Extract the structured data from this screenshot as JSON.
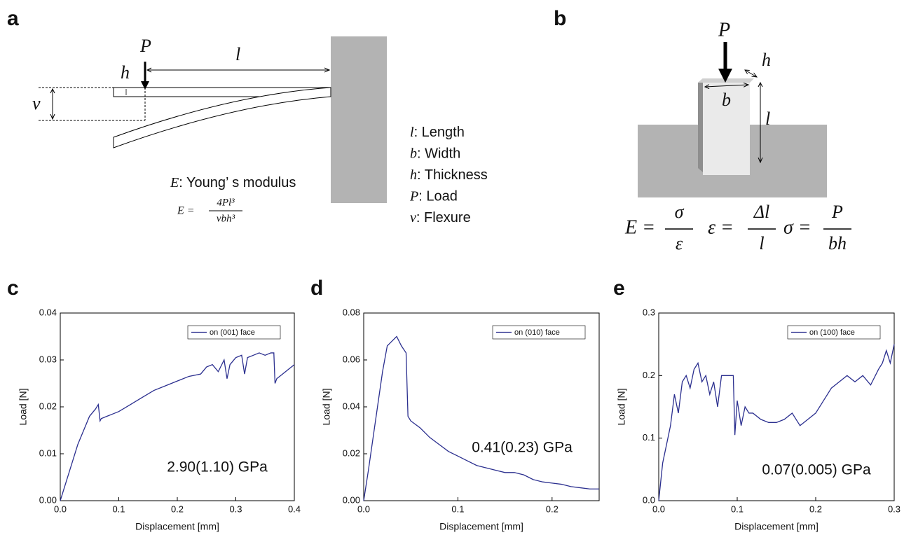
{
  "diagram_a": {
    "label": "a",
    "P": "P",
    "l": "l",
    "h": "h",
    "v": "v",
    "caption_symbol": "E",
    "caption_text": ": Young’ s modulus",
    "formula": {
      "lhs": "E =",
      "numerator": "4Pl³",
      "denominator": "vbh³"
    },
    "legend": [
      {
        "symbol": "l",
        "text": ": Length"
      },
      {
        "symbol": "b",
        "text": ": Width"
      },
      {
        "symbol": "h",
        "text": ": Thickness"
      },
      {
        "symbol": "P",
        "text": ": Load"
      },
      {
        "symbol": "v",
        "text": ": Flexure"
      }
    ]
  },
  "diagram_b": {
    "label": "b",
    "P": "P",
    "h": "h",
    "b": "b",
    "l": "l",
    "formulas": [
      {
        "lhs": "E =",
        "numerator": "σ",
        "denominator": "ε"
      },
      {
        "lhs": "ε =",
        "numerator": "Δl",
        "denominator": "l"
      },
      {
        "lhs": "σ =",
        "numerator": "P",
        "denominator": "bh"
      }
    ]
  },
  "chart_data": [
    {
      "type": "line",
      "panel": "c",
      "xlabel": "Displacement [mm]",
      "ylabel": "Load [N]",
      "annotation": "2.90(1.10) GPa",
      "legend": "upper right",
      "x": [
        0,
        0.01,
        0.02,
        0.03,
        0.04,
        0.05,
        0.06,
        0.065,
        0.068,
        0.07,
        0.08,
        0.09,
        0.1,
        0.12,
        0.14,
        0.16,
        0.18,
        0.2,
        0.22,
        0.24,
        0.25,
        0.26,
        0.27,
        0.28,
        0.285,
        0.29,
        0.3,
        0.31,
        0.315,
        0.32,
        0.33,
        0.34,
        0.35,
        0.36,
        0.365,
        0.367,
        0.37,
        0.38,
        0.39,
        0.4
      ],
      "series": [
        {
          "name": "on (001) face",
          "color": "#2b2f8f",
          "values": [
            0,
            0.004,
            0.008,
            0.012,
            0.015,
            0.018,
            0.0195,
            0.0205,
            0.017,
            0.0175,
            0.018,
            0.0185,
            0.019,
            0.0205,
            0.022,
            0.0235,
            0.0245,
            0.0255,
            0.0265,
            0.027,
            0.0285,
            0.029,
            0.0275,
            0.03,
            0.026,
            0.029,
            0.0305,
            0.031,
            0.027,
            0.0305,
            0.031,
            0.0315,
            0.031,
            0.0315,
            0.0315,
            0.025,
            0.026,
            0.027,
            0.028,
            0.029
          ]
        }
      ],
      "xlim": [
        0,
        0.4
      ],
      "ylim": [
        0,
        0.04
      ],
      "xticks": [
        {
          "value": 0,
          "label": "0.0"
        },
        0.1,
        0.2,
        0.3,
        0.4
      ],
      "yticks": [
        {
          "value": 0,
          "label": "0.00"
        },
        0.01,
        0.02,
        0.03,
        0.04
      ]
    },
    {
      "type": "line",
      "panel": "d",
      "xlabel": "Displacement [mm]",
      "ylabel": "Load [N]",
      "annotation": "0.41(0.23) GPa",
      "legend": "upper right",
      "x": [
        0,
        0.005,
        0.01,
        0.015,
        0.02,
        0.025,
        0.03,
        0.035,
        0.04,
        0.045,
        0.047,
        0.05,
        0.06,
        0.07,
        0.08,
        0.09,
        0.1,
        0.11,
        0.12,
        0.13,
        0.14,
        0.15,
        0.16,
        0.17,
        0.18,
        0.19,
        0.2,
        0.21,
        0.22,
        0.23,
        0.24,
        0.25
      ],
      "series": [
        {
          "name": "on (010) face",
          "color": "#2b2f8f",
          "values": [
            0,
            0.013,
            0.027,
            0.041,
            0.055,
            0.066,
            0.068,
            0.07,
            0.066,
            0.063,
            0.036,
            0.034,
            0.031,
            0.027,
            0.024,
            0.021,
            0.019,
            0.017,
            0.015,
            0.014,
            0.013,
            0.012,
            0.012,
            0.011,
            0.009,
            0.008,
            0.0075,
            0.007,
            0.006,
            0.0055,
            0.005,
            0.005
          ]
        }
      ],
      "xlim": [
        0,
        0.25
      ],
      "ylim": [
        0,
        0.08
      ],
      "xticks": [
        {
          "value": 0,
          "label": "0.0"
        },
        0.1,
        0.2
      ],
      "yticks": [
        {
          "value": 0,
          "label": "0.00"
        },
        0.02,
        0.04,
        0.06,
        0.08
      ]
    },
    {
      "type": "line",
      "panel": "e",
      "xlabel": "Displacement [mm]",
      "ylabel": "Load [N]",
      "annotation": "0.07(0.005) GPa",
      "legend": "upper right",
      "x": [
        0,
        0.005,
        0.01,
        0.015,
        0.02,
        0.025,
        0.03,
        0.035,
        0.04,
        0.045,
        0.05,
        0.055,
        0.06,
        0.065,
        0.07,
        0.075,
        0.08,
        0.085,
        0.09,
        0.095,
        0.097,
        0.1,
        0.105,
        0.11,
        0.115,
        0.12,
        0.13,
        0.14,
        0.15,
        0.16,
        0.17,
        0.18,
        0.19,
        0.2,
        0.21,
        0.22,
        0.23,
        0.24,
        0.25,
        0.26,
        0.27,
        0.28,
        0.285,
        0.29,
        0.295,
        0.3
      ],
      "series": [
        {
          "name": "on (100) face",
          "color": "#2b2f8f",
          "values": [
            0,
            0.06,
            0.09,
            0.12,
            0.17,
            0.14,
            0.19,
            0.2,
            0.18,
            0.21,
            0.22,
            0.19,
            0.2,
            0.17,
            0.19,
            0.15,
            0.2,
            0.2,
            0.2,
            0.2,
            0.105,
            0.16,
            0.12,
            0.15,
            0.14,
            0.14,
            0.13,
            0.125,
            0.125,
            0.13,
            0.14,
            0.12,
            0.13,
            0.14,
            0.16,
            0.18,
            0.19,
            0.2,
            0.19,
            0.2,
            0.185,
            0.21,
            0.22,
            0.24,
            0.22,
            0.25
          ]
        }
      ],
      "xlim": [
        0,
        0.3
      ],
      "ylim": [
        0,
        0.3
      ],
      "xticks": [
        {
          "value": 0,
          "label": "0.0"
        },
        0.1,
        0.2,
        0.3
      ],
      "yticks": [
        {
          "value": 0,
          "label": "0.0"
        },
        0.1,
        0.2,
        0.3
      ]
    }
  ]
}
